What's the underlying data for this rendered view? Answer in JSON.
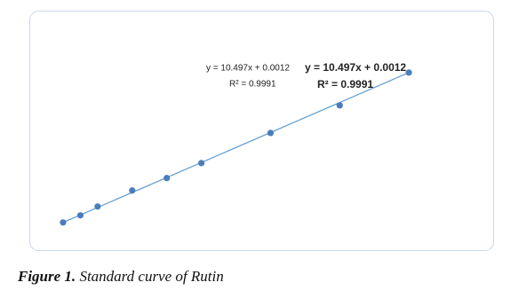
{
  "chart_data": {
    "type": "scatter",
    "x": [
      0,
      0.005,
      0.01,
      0.02,
      0.03,
      0.04,
      0.06,
      0.08,
      0.1
    ],
    "values": [
      0.0012,
      0.051,
      0.113,
      0.225,
      0.312,
      0.417,
      0.628,
      0.821,
      1.051
    ],
    "color": "#4a7ebb",
    "trendline": {
      "slope": 10.497,
      "intercept": 0.0012,
      "color": "#5b9bd5"
    },
    "xlim": [
      -0.005,
      0.105
    ],
    "ylim": [
      -0.1,
      1.2
    ],
    "annotations": [
      "y = 10.497x + 0.0012",
      "R² = 0.9991",
      "y = 10.497x + 0.0012",
      "R² = 0.9991"
    ]
  },
  "figure_label": "Figure 1.",
  "caption": "Standard curve of Rutin"
}
